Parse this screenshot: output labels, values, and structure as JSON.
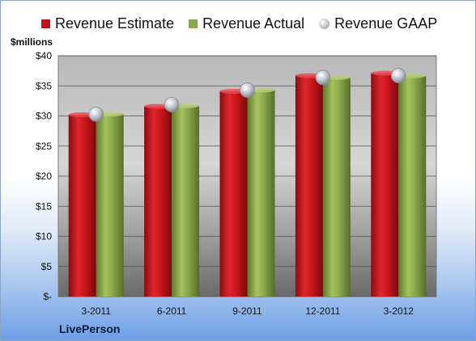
{
  "legend": [
    {
      "label": "Revenue Estimate",
      "color": "#c0131a",
      "shape": "square"
    },
    {
      "label": "Revenue Actual",
      "color": "#8aa84a",
      "shape": "square"
    },
    {
      "label": "Revenue GAAP",
      "color": "#b8bcc4",
      "shape": "circle"
    }
  ],
  "unit_label": "$millions",
  "company": "LivePerson",
  "chart_data": {
    "type": "bar",
    "categories": [
      "3-2011",
      "6-2011",
      "9-2011",
      "12-2011",
      "3-2012"
    ],
    "series": [
      {
        "name": "Revenue Estimate",
        "type": "bar",
        "color": "#c0131a",
        "values": [
          30.2,
          31.6,
          34.1,
          36.7,
          37.1
        ]
      },
      {
        "name": "Revenue Actual",
        "type": "bar",
        "color": "#8aa84a",
        "values": [
          30.3,
          31.7,
          34.3,
          36.4,
          36.7
        ]
      },
      {
        "name": "Revenue GAAP",
        "type": "marker",
        "color": "#b8bcc4",
        "values": [
          30.3,
          31.9,
          34.3,
          36.4,
          36.7
        ]
      }
    ],
    "ylim": [
      0,
      40
    ],
    "yticks": [
      0,
      5,
      10,
      15,
      20,
      25,
      30,
      35,
      40
    ],
    "ytick_labels": [
      "$-",
      "$5",
      "$10",
      "$15",
      "$20",
      "$25",
      "$30",
      "$35",
      "$40"
    ],
    "grid": true
  }
}
